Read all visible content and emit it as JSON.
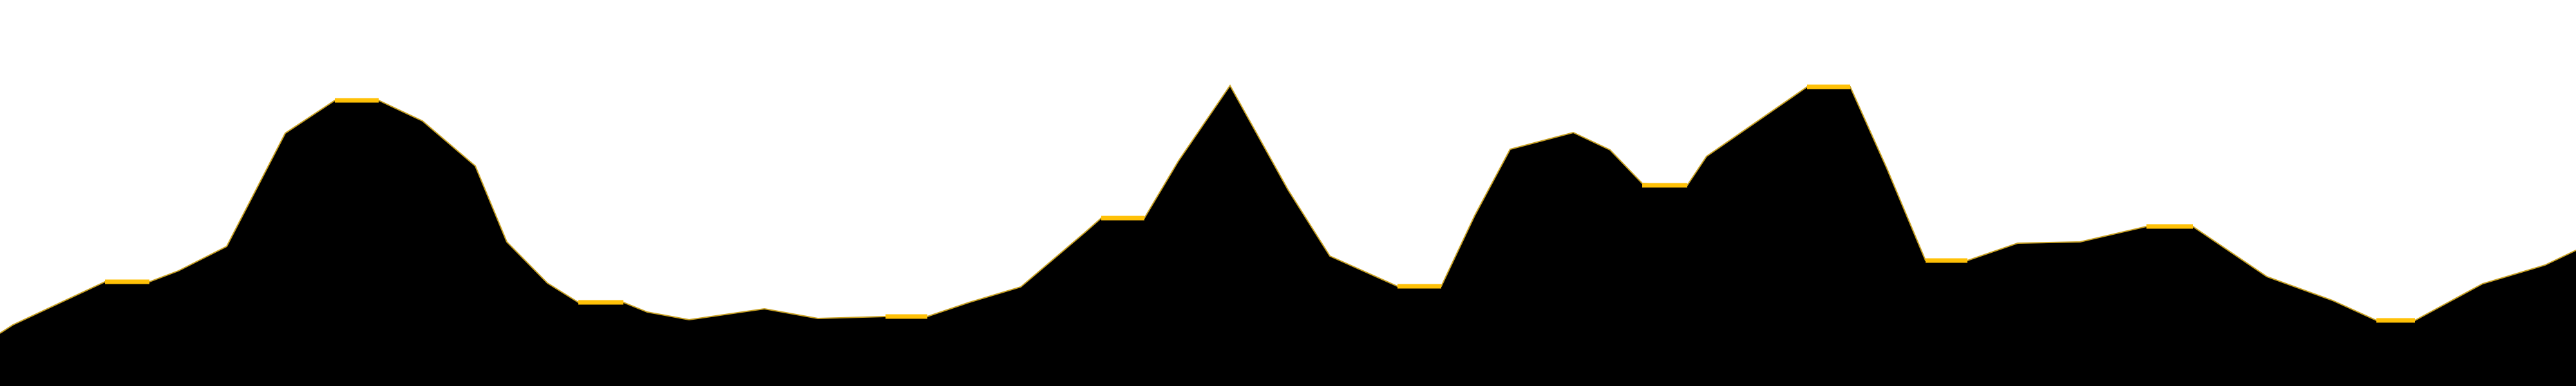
{
  "colors": {
    "sky": "#ffffff",
    "terrain_fill": "#000000",
    "terrain_edge": "#c9a225",
    "landing_pad": "#ffc107"
  },
  "icons": {
    "terrain": "terrain-silhouette",
    "landing_pad": "landing-pad-marker"
  }
}
